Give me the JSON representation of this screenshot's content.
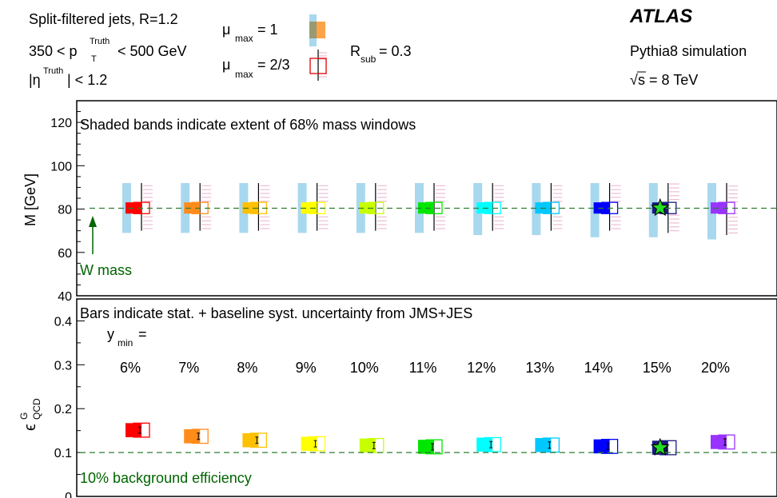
{
  "header": {
    "line1": "Split-filtered jets, R=1.2",
    "line2_pre": "350 < p",
    "line2_sup": "Truth",
    "line2_sub": "T",
    "line2_post": " < 500 GeV",
    "line3_pre": "|η",
    "line3_sup": "Truth",
    "line3_post": "| < 1.2",
    "mu1_sym": "μ",
    "mu1_sub": "max",
    "mu1_val": " = 1",
    "mu2_sym": "μ",
    "mu2_sub": "max",
    "mu2_val": " = 2/3",
    "rsub_sym": "R",
    "rsub_sub": "sub",
    "rsub_val": " =   0.3",
    "atlas": "ATLAS",
    "sim": "Pythia8 simulation",
    "sqrt_sym": "√",
    "energy": "s = 8 TeV"
  },
  "chart_data": [
    {
      "type": "scatter",
      "panel": "top",
      "annotation": "Shaded bands indicate extent of 68% mass windows",
      "ylabel": "M [GeV]",
      "ylim": [
        40,
        130
      ],
      "yticks": [
        40,
        60,
        80,
        100,
        120
      ],
      "reference_line": {
        "value": 80.4,
        "label": "W mass"
      },
      "categories": [
        "6%",
        "7%",
        "8%",
        "9%",
        "10%",
        "11%",
        "12%",
        "13%",
        "14%",
        "15%",
        "20%"
      ],
      "colors": [
        "#ff0000",
        "#ff8c1a",
        "#ffc000",
        "#ffff00",
        "#c8ff00",
        "#00e600",
        "#00ffff",
        "#00c8ff",
        "#0000ff",
        "#1a1a80",
        "#9933ff"
      ],
      "series": [
        {
          "name": "μ max = 1",
          "values": [
            80.5,
            80.5,
            80.5,
            80.5,
            80.5,
            80.5,
            80.5,
            80.5,
            80.5,
            80.5,
            80.5
          ]
        },
        {
          "name": "μ max = 2/3",
          "values": [
            80.5,
            80.5,
            80.5,
            80.5,
            80.5,
            80.5,
            80.5,
            80.5,
            80.5,
            80.5,
            80.5
          ]
        }
      ],
      "window_mu1": [
        [
          69,
          92
        ],
        [
          69,
          92
        ],
        [
          69,
          92
        ],
        [
          69,
          92
        ],
        [
          69,
          92
        ],
        [
          69,
          92
        ],
        [
          68,
          92
        ],
        [
          68,
          92
        ],
        [
          67,
          92
        ],
        [
          67,
          92
        ],
        [
          66,
          92
        ]
      ],
      "window_mu23": [
        [
          70,
          92
        ],
        [
          70,
          92
        ],
        [
          70,
          92
        ],
        [
          70,
          92
        ],
        [
          70,
          92
        ],
        [
          70,
          92
        ],
        [
          70,
          92
        ],
        [
          70,
          92
        ],
        [
          70,
          92
        ],
        [
          69,
          92
        ],
        [
          68,
          92
        ]
      ],
      "optimal_index": 9
    },
    {
      "type": "scatter",
      "panel": "bottom",
      "annotation": "Bars indicate stat. + baseline syst. uncertainty from JMS+JES",
      "ymin_label_y": "y",
      "ymin_label_sub": "min",
      "ymin_label_eq": " =",
      "ylabel_base": "ϵ",
      "ylabel_sup": "G",
      "ylabel_sub": "QCD",
      "ylim": [
        0,
        0.45
      ],
      "yticks": [
        0,
        0.1,
        0.2,
        0.3,
        0.4
      ],
      "ytick_labels": [
        "0",
        "0.1",
        "0.2",
        "0.3",
        "0.4"
      ],
      "reference_line": {
        "value": 0.1,
        "label": "10% background efficiency"
      },
      "categories": [
        "6%",
        "7%",
        "8%",
        "9%",
        "10%",
        "11%",
        "12%",
        "13%",
        "14%",
        "15%",
        "20%"
      ],
      "series": [
        {
          "name": "μ max = 1",
          "values": [
            0.151,
            0.137,
            0.128,
            0.12,
            0.116,
            0.113,
            0.118,
            0.117,
            0.114,
            0.111,
            0.124
          ]
        },
        {
          "name": "μ max = 2/3",
          "values": [
            0.151,
            0.137,
            0.128,
            0.12,
            0.116,
            0.113,
            0.118,
            0.117,
            0.114,
            0.111,
            0.124
          ]
        }
      ],
      "optimal_index": 9
    }
  ]
}
